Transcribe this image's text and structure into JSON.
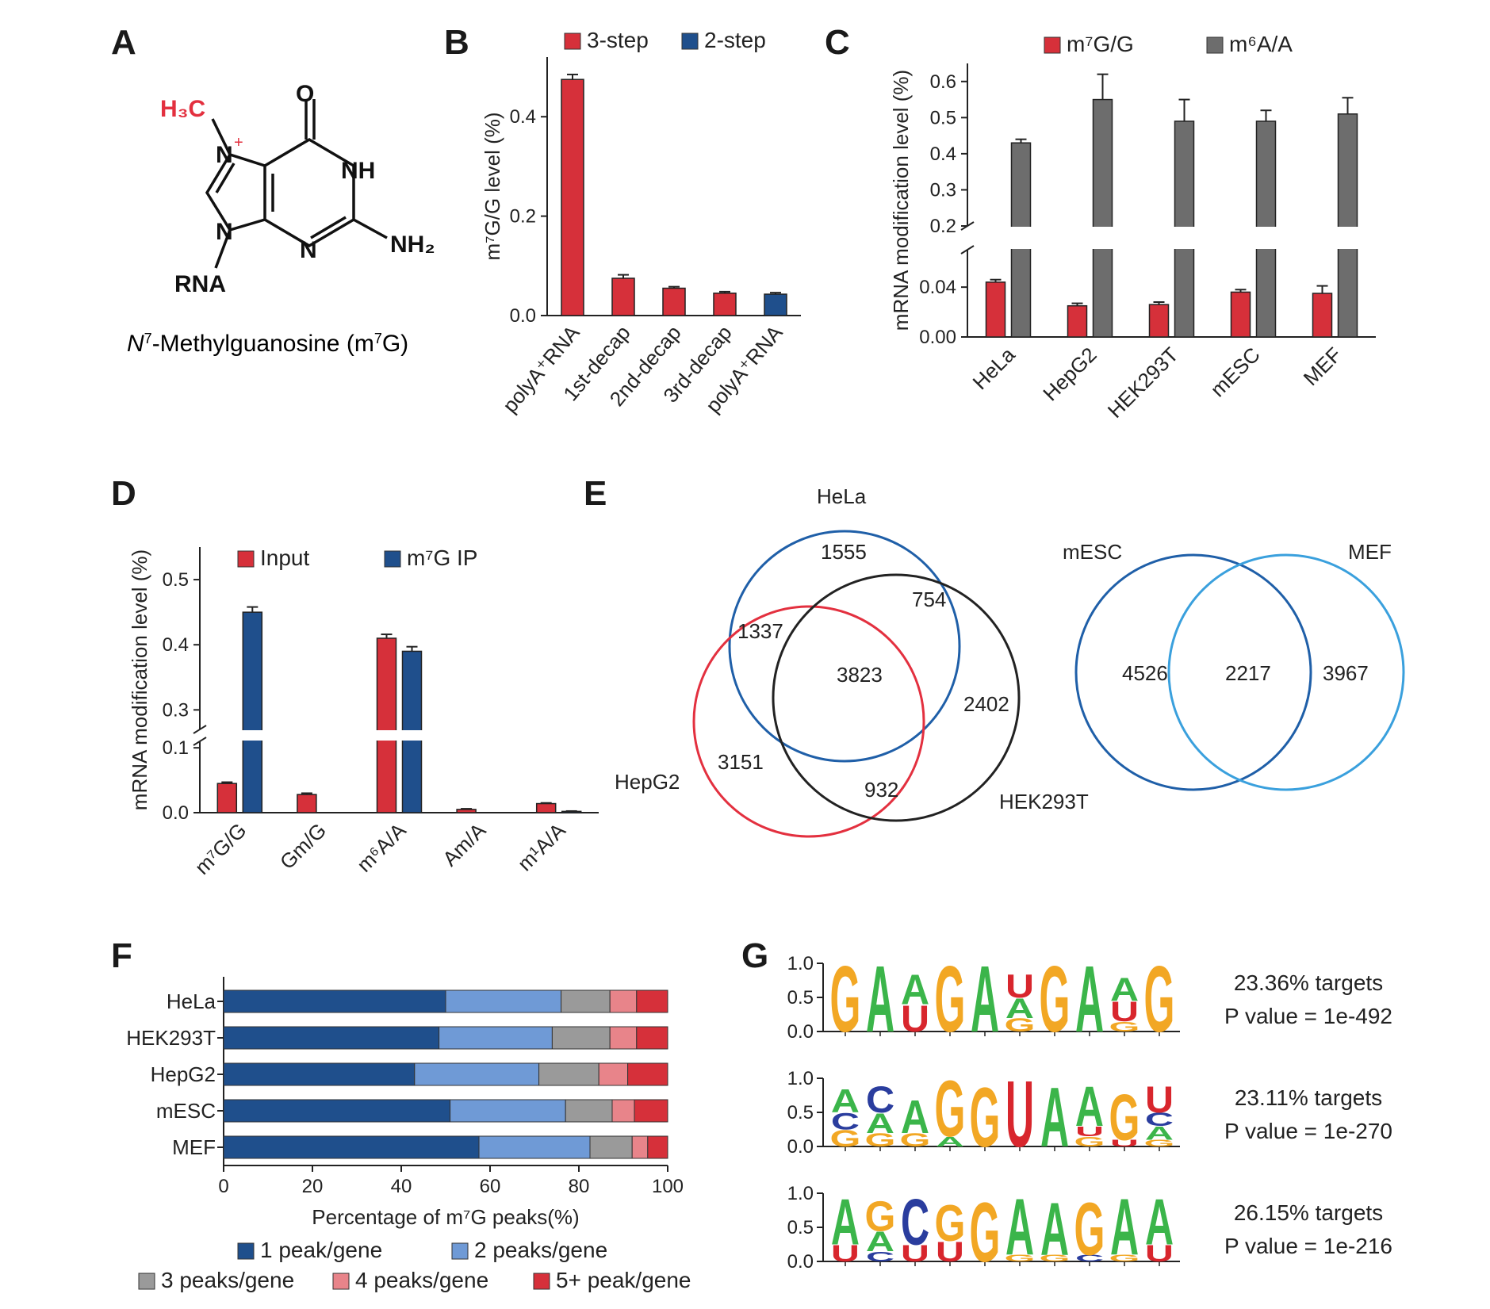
{
  "colors": {
    "red": "#d6303a",
    "blue": "#1f4f8c",
    "gray": "#6d6d6d",
    "lightblue": "#6f9ad6",
    "midgray": "#9a9a9a",
    "pink": "#e8848a",
    "venn_blue": "#1f5fa8",
    "venn_red": "#e3303f",
    "venn_black": "#222222",
    "venn_cyan": "#3aa0dd",
    "nt_A": "#3bb54a",
    "nt_C": "#2a3d9e",
    "nt_G": "#f2a724",
    "nt_U": "#d8262d"
  },
  "panel_A": {
    "letter": "A",
    "methyl_label": "H₃C",
    "o_label": "O",
    "nh_label": "NH",
    "nh2_label": "NH₂",
    "n7_label": "N",
    "n7_charge": "+",
    "n9_label": "N",
    "n3_label": "N",
    "rna_label": "RNA",
    "caption_italic": "N",
    "caption_sup": "7",
    "caption_rest": "-Methylguanosine (m",
    "caption_sup2": "7",
    "caption_end": "G)"
  },
  "chart_data": [
    {
      "panel": "B",
      "type": "bar",
      "letter": "B",
      "categories": [
        "polyA⁺RNA",
        "1st-decap",
        "2nd-decap",
        "3rd-decap",
        "polyA⁺RNA"
      ],
      "series": [
        {
          "name": "3-step",
          "values": [
            0.475,
            0.075,
            0.055,
            0.045,
            null
          ],
          "errors": [
            0.01,
            0.007,
            0.003,
            0.003,
            null
          ]
        },
        {
          "name": "2-step",
          "values": [
            null,
            null,
            null,
            null,
            0.043
          ],
          "errors": [
            null,
            null,
            null,
            null,
            0.003
          ]
        }
      ],
      "ylabel": "m⁷G/G level (%)",
      "ylim": [
        0,
        0.52
      ],
      "yticks": [
        "0.0",
        "0.2",
        "0.4"
      ],
      "legend": "top"
    },
    {
      "panel": "C",
      "type": "bar",
      "letter": "C",
      "categories": [
        "HeLa",
        "HepG2",
        "HEK293T",
        "mESC",
        "MEF"
      ],
      "series": [
        {
          "name": "m⁷G/G",
          "values": [
            0.044,
            0.025,
            0.026,
            0.036,
            0.035
          ],
          "errors": [
            0.002,
            0.002,
            0.002,
            0.002,
            0.006
          ]
        },
        {
          "name": "m⁶A/A",
          "values": [
            0.43,
            0.55,
            0.49,
            0.49,
            0.51
          ],
          "errors": [
            0.01,
            0.07,
            0.06,
            0.03,
            0.045
          ]
        }
      ],
      "ylabel": "mRNA modification level (%)",
      "axis_break": {
        "lower": [
          0,
          0.07
        ],
        "upper": [
          0.2,
          0.65
        ]
      },
      "yticks_lower": [
        "0.00",
        "0.04"
      ],
      "yticks_upper": [
        "0.2",
        "0.3",
        "0.4",
        "0.5",
        "0.6"
      ],
      "legend": "top"
    },
    {
      "panel": "D",
      "type": "bar",
      "letter": "D",
      "categories": [
        "m⁷G/G",
        "Gm/G",
        "m⁶A/A",
        "Am/A",
        "m¹A/A"
      ],
      "series": [
        {
          "name": "Input",
          "values": [
            0.045,
            0.028,
            0.41,
            0.005,
            0.014
          ],
          "errors": [
            0.002,
            0.002,
            0.006,
            0.001,
            0.001
          ]
        },
        {
          "name": "m⁷G IP",
          "values": [
            0.45,
            0.0,
            0.39,
            0.0,
            0.002
          ],
          "errors": [
            0.008,
            0,
            0.007,
            0,
            0.0005
          ]
        }
      ],
      "ylabel": "mRNA modification level (%)",
      "axis_break": {
        "lower": [
          0,
          0.11
        ],
        "upper": [
          0.27,
          0.55
        ]
      },
      "yticks_lower": [
        "0.0",
        "0.1"
      ],
      "yticks_upper": [
        "0.3",
        "0.4",
        "0.5"
      ],
      "legend": "top"
    },
    {
      "panel": "F",
      "type": "bar",
      "orientation": "horizontal-stacked",
      "letter": "F",
      "categories": [
        "HeLa",
        "HEK293T",
        "HepG2",
        "mESC",
        "MEF"
      ],
      "series": [
        {
          "name": "1 peak/gene",
          "values": [
            50,
            48.5,
            43,
            51,
            57.5
          ]
        },
        {
          "name": "2 peaks/gene",
          "values": [
            26,
            25.5,
            28,
            26,
            25
          ]
        },
        {
          "name": "3 peaks/gene",
          "values": [
            11,
            13,
            13.5,
            10.5,
            9.5
          ]
        },
        {
          "name": "4 peaks/gene",
          "values": [
            6,
            6,
            6.5,
            5,
            3.5
          ]
        },
        {
          "name": "5+ peak/gene",
          "values": [
            7,
            7,
            9,
            7.5,
            4.5
          ]
        }
      ],
      "xlabel": "Percentage of m⁷G peaks(%)",
      "xlim": [
        0,
        100
      ],
      "xticks": [
        "0",
        "20",
        "40",
        "60",
        "80",
        "100"
      ],
      "legend": "bottom"
    }
  ],
  "panel_E": {
    "letter": "E",
    "venn3": {
      "labels": {
        "a": "HeLa",
        "b": "HepG2",
        "c": "HEK293T"
      },
      "values": {
        "a_only": "1555",
        "ab": "1337",
        "ac": "754",
        "abc": "3823",
        "c_only": "2402",
        "b_only": "3151",
        "bc": "932"
      }
    },
    "venn2": {
      "labels": {
        "a": "mESC",
        "b": "MEF"
      },
      "values": {
        "a_only": "4526",
        "ab": "2217",
        "b_only": "3967"
      }
    }
  },
  "panel_G": {
    "letter": "G",
    "yticks": [
      "0.0",
      "0.5",
      "1.0"
    ],
    "motifs": [
      {
        "targets": "23.36% targets",
        "pvalue": "P value = 1e-492"
      },
      {
        "targets": "23.11% targets",
        "pvalue": "P value = 1e-270"
      },
      {
        "targets": "26.15% targets",
        "pvalue": "P value = 1e-216"
      }
    ]
  }
}
